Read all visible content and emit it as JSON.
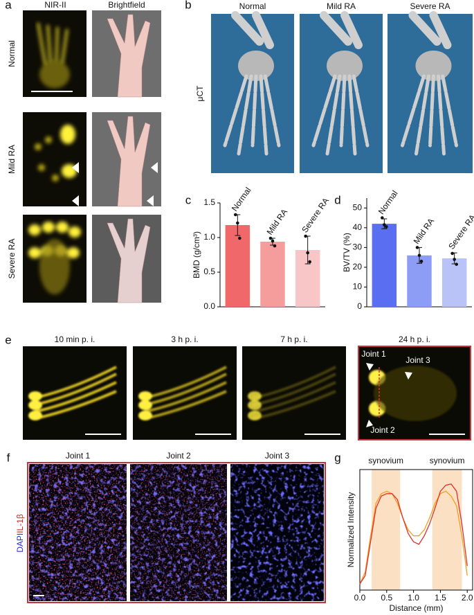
{
  "panels": {
    "a": {
      "label": "a",
      "columns": [
        "NIR-II",
        "Brightfield"
      ],
      "rows": [
        "Normal",
        "Mild RA",
        "Severe RA"
      ]
    },
    "b": {
      "label": "b",
      "columns": [
        "Normal",
        "Mild RA",
        "Severe RA"
      ],
      "row": "μCT"
    },
    "e": {
      "label": "e",
      "columns": [
        "10 min p. i.",
        "3 h p. i.",
        "7 h p. i.",
        "24 h p. i."
      ],
      "annotations": [
        "Joint 1",
        "Joint 3",
        "Joint 2"
      ]
    },
    "f": {
      "label": "f",
      "columns": [
        "Joint 1",
        "Joint 2",
        "Joint 3"
      ],
      "stain_dapi": "DAPI",
      "stain_il": "IL-1β"
    }
  },
  "chart_data": [
    {
      "type": "bar",
      "panel_label": "c",
      "ylabel": "BMD (g/cm³)",
      "categories": [
        "Normal",
        "Mild RA",
        "Severe RA"
      ],
      "values": [
        1.18,
        0.94,
        0.82
      ],
      "errors": [
        0.15,
        0.05,
        0.2
      ],
      "points": [
        [
          1.33,
          1.21,
          0.99
        ],
        [
          0.99,
          0.95,
          0.88
        ],
        [
          1.02,
          0.78,
          0.65
        ]
      ],
      "colors": [
        "#f0686a",
        "#f59c9c",
        "#f8c6c6"
      ],
      "ylim": [
        0,
        1.5
      ],
      "yticks": [
        {
          "value": 0,
          "label": "0.0"
        },
        {
          "value": 0.5,
          "label": "0.5"
        },
        {
          "value": 1,
          "label": "1.0"
        },
        {
          "value": 1.5,
          "label": "1.5"
        }
      ]
    },
    {
      "type": "bar",
      "panel_label": "d",
      "ylabel": "BV/TV (%)",
      "categories": [
        "Normal",
        "Mild RA",
        "Severe RA"
      ],
      "values": [
        42,
        26,
        24.5
      ],
      "errors": [
        2.5,
        4,
        2.8
      ],
      "points": [
        [
          45,
          41.5,
          40.5
        ],
        [
          30,
          26,
          23
        ],
        [
          27,
          24,
          21.5
        ]
      ],
      "colors": [
        "#5a6ef2",
        "#8d9cf5",
        "#b9c3f8"
      ],
      "ylim": [
        0,
        55
      ],
      "yticks": [
        0,
        10,
        20,
        30,
        40,
        50
      ]
    },
    {
      "type": "line",
      "panel_label": "g",
      "xlabel": "Distance (mm)",
      "ylabel": "Normalized Intensity",
      "annotations": [
        "synovium",
        "synovium"
      ],
      "bands": [
        [
          0.22,
          0.75
        ],
        [
          1.35,
          1.9
        ]
      ],
      "band_color": "#fbe0c3",
      "x": [
        0,
        0.1,
        0.2,
        0.3,
        0.4,
        0.5,
        0.6,
        0.7,
        0.8,
        0.9,
        1.0,
        1.1,
        1.2,
        1.3,
        1.4,
        1.5,
        1.6,
        1.7,
        1.8,
        1.9,
        2.0
      ],
      "series": [
        {
          "color": "#f0a020",
          "values": [
            0.05,
            0.15,
            0.45,
            0.72,
            0.8,
            0.82,
            0.8,
            0.72,
            0.6,
            0.5,
            0.45,
            0.45,
            0.5,
            0.6,
            0.72,
            0.8,
            0.82,
            0.78,
            0.7,
            0.45,
            0.12
          ]
        },
        {
          "color": "#e0302a",
          "values": [
            0.05,
            0.12,
            0.4,
            0.68,
            0.78,
            0.8,
            0.8,
            0.75,
            0.6,
            0.47,
            0.4,
            0.38,
            0.45,
            0.55,
            0.68,
            0.82,
            0.87,
            0.88,
            0.82,
            0.55,
            0.2
          ]
        }
      ],
      "xlim": [
        0,
        2.1
      ],
      "xticks": [
        {
          "value": 0,
          "label": "0.0"
        },
        {
          "value": 0.5,
          "label": "0.5"
        },
        {
          "value": 1,
          "label": "1.0"
        },
        {
          "value": 1.5,
          "label": "1.5"
        },
        {
          "value": 2,
          "label": "2.0"
        }
      ],
      "ylim": [
        0,
        1
      ]
    }
  ]
}
